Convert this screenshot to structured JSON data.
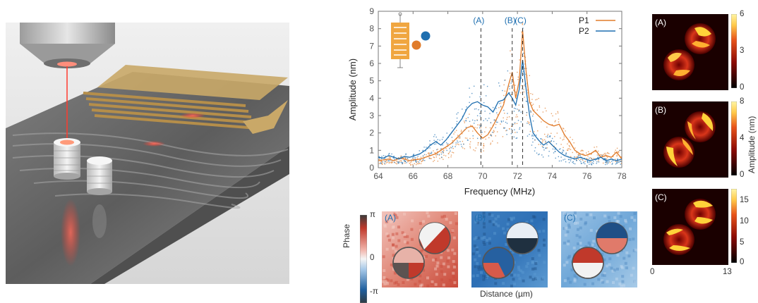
{
  "chart_data": {
    "type": "line",
    "xlabel": "Frequency (MHz)",
    "ylabel": "Amplitude (nm)",
    "xlim": [
      64,
      78
    ],
    "ylim": [
      0,
      9
    ],
    "xticks": [
      "64",
      "66",
      "68",
      "70",
      "72",
      "74",
      "76",
      "78"
    ],
    "yticks": [
      "0",
      "1",
      "2",
      "3",
      "4",
      "5",
      "6",
      "7",
      "8",
      "9"
    ],
    "legend_position": "top-right",
    "markers": [
      {
        "label": "(A)",
        "x": 69.9
      },
      {
        "label": "(B)",
        "x": 71.7
      },
      {
        "label": "(C)",
        "x": 72.3
      }
    ],
    "series": [
      {
        "name": "P1",
        "color": "#e07b2a",
        "x": [
          64,
          64.3,
          64.6,
          64.9,
          65.2,
          65.5,
          65.8,
          66.1,
          66.4,
          66.7,
          67.0,
          67.3,
          67.6,
          67.9,
          68.2,
          68.5,
          68.8,
          69.1,
          69.4,
          69.7,
          70.0,
          70.3,
          70.6,
          70.9,
          71.2,
          71.5,
          71.7,
          71.9,
          72.1,
          72.3,
          72.5,
          72.7,
          72.9,
          73.2,
          73.5,
          73.8,
          74.1,
          74.4,
          74.7,
          75.0,
          75.3,
          75.6,
          75.9,
          76.2,
          76.5,
          76.8,
          77.1,
          77.4,
          77.7,
          78
        ],
        "y": [
          0.4,
          0.45,
          0.5,
          0.4,
          0.55,
          0.5,
          0.4,
          0.45,
          0.5,
          0.6,
          0.7,
          0.8,
          1.0,
          1.2,
          1.4,
          1.7,
          2.0,
          2.3,
          2.4,
          2.0,
          1.7,
          1.9,
          2.4,
          3.0,
          3.6,
          4.8,
          5.5,
          4.0,
          5.0,
          7.9,
          5.5,
          3.8,
          3.3,
          3.0,
          2.7,
          2.5,
          2.4,
          2.5,
          1.9,
          1.5,
          1.0,
          0.8,
          0.7,
          0.8,
          1.0,
          0.6,
          0.7,
          0.6,
          0.9,
          0.5
        ]
      },
      {
        "name": "P2",
        "color": "#1f6fb0",
        "x": [
          64,
          64.3,
          64.6,
          64.9,
          65.2,
          65.5,
          65.8,
          66.1,
          66.4,
          66.7,
          67.0,
          67.3,
          67.6,
          67.9,
          68.2,
          68.5,
          68.8,
          69.1,
          69.4,
          69.7,
          70.0,
          70.3,
          70.6,
          70.9,
          71.2,
          71.5,
          71.7,
          71.9,
          72.1,
          72.3,
          72.5,
          72.7,
          72.9,
          73.2,
          73.5,
          73.8,
          74.1,
          74.4,
          74.7,
          75.0,
          75.3,
          75.6,
          75.9,
          76.2,
          76.5,
          76.8,
          77.1,
          77.4,
          77.7,
          78
        ],
        "y": [
          0.6,
          0.55,
          0.7,
          0.6,
          0.5,
          0.65,
          0.6,
          0.7,
          0.8,
          1.0,
          1.3,
          1.5,
          1.3,
          1.6,
          2.0,
          2.4,
          2.8,
          3.4,
          3.7,
          3.8,
          3.6,
          3.5,
          3.2,
          3.8,
          3.9,
          4.3,
          4.0,
          3.6,
          4.5,
          6.2,
          4.5,
          3.0,
          2.0,
          1.6,
          1.3,
          1.5,
          1.2,
          0.9,
          0.7,
          0.6,
          0.5,
          0.6,
          0.5,
          0.4,
          0.5,
          0.6,
          0.4,
          0.5,
          0.4,
          0.5
        ]
      }
    ]
  },
  "phase_maps": {
    "ylabel": "Phase",
    "tick_top": "π",
    "tick_mid": "0",
    "tick_bottom": "-π",
    "xlabel": "Distance (µm)",
    "panels": [
      {
        "label": "(A)"
      },
      {
        "label": "(B)"
      },
      {
        "label": "(C)"
      }
    ]
  },
  "amplitude_maps": {
    "colorbar_label": "Amplitude (nm)",
    "x_tick_left": "0",
    "x_tick_right": "13",
    "panels": [
      {
        "label": "(A)",
        "ticks": [
          "6",
          "3",
          "0"
        ]
      },
      {
        "label": "(B)",
        "ticks": [
          "8",
          "4",
          "0"
        ]
      },
      {
        "label": "(C)",
        "ticks": [
          "15",
          "10",
          "5",
          "0"
        ]
      }
    ]
  },
  "colors": {
    "p1": "#e07b2a",
    "p2": "#1f6fb0",
    "marker_text": "#1f6fb0",
    "phase_red": "#c0392b",
    "phase_blue": "#1f5f9e",
    "amp_hot": "#ffd23a"
  }
}
